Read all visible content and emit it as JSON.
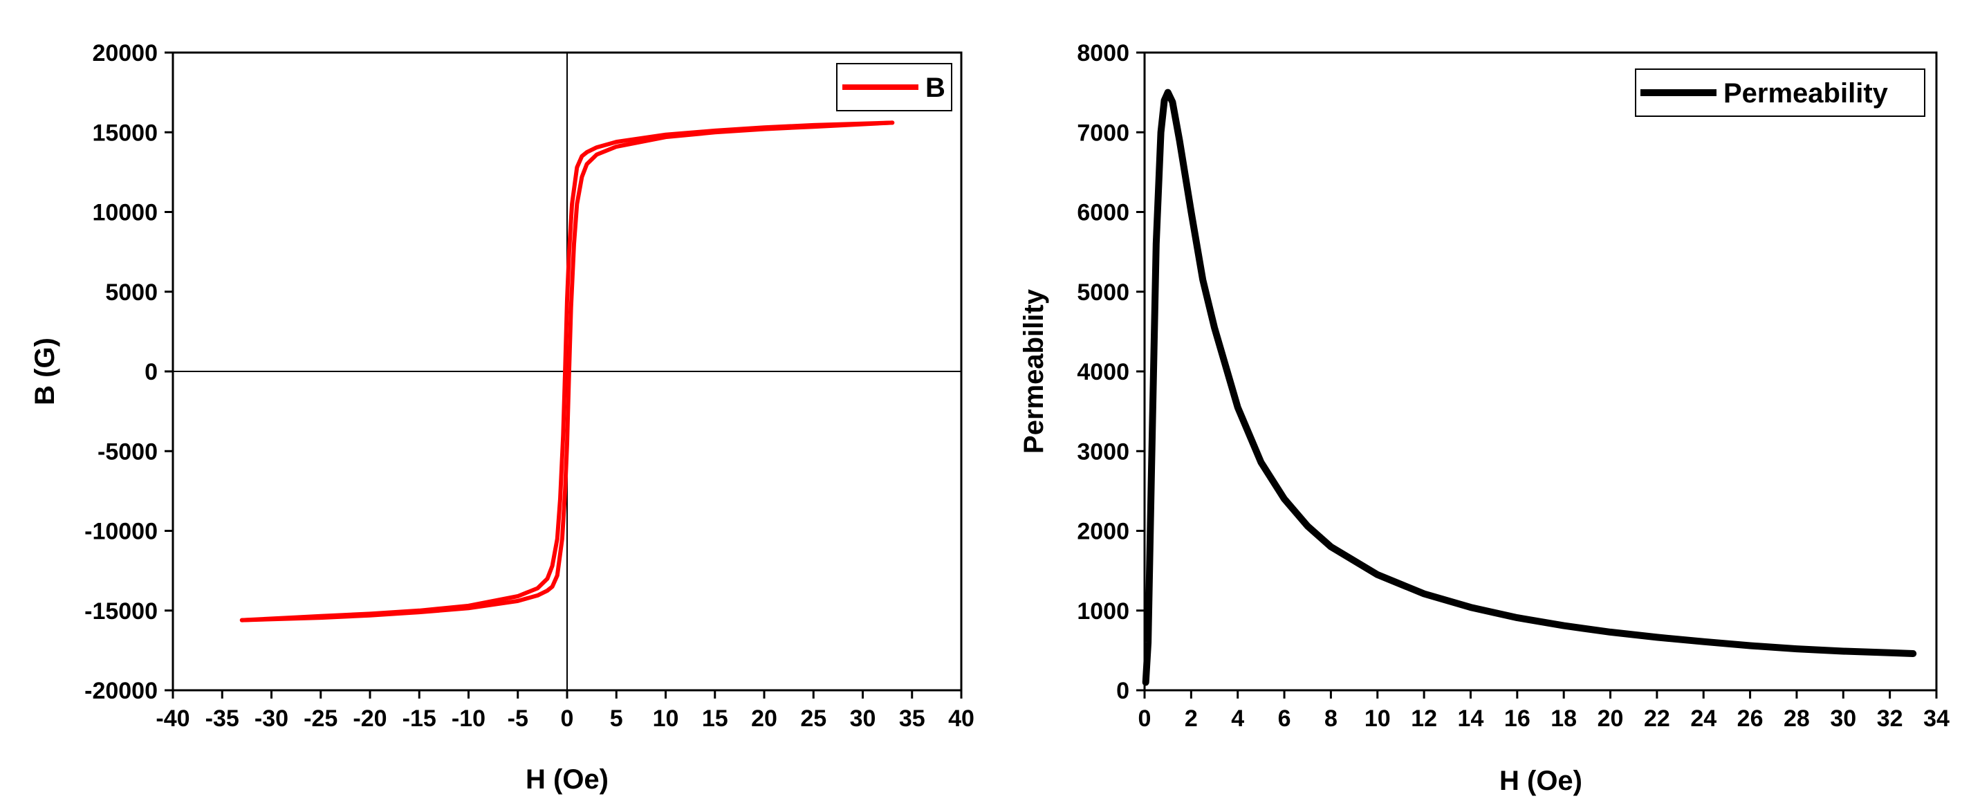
{
  "chart_data": [
    {
      "type": "line",
      "title": "",
      "xlabel": "H (Oe)",
      "ylabel": "B (G)",
      "xlim": [
        -40,
        40
      ],
      "ylim": [
        -20000,
        20000
      ],
      "xticks": [
        -40,
        -35,
        -30,
        -25,
        -20,
        -15,
        -10,
        -5,
        0,
        5,
        10,
        15,
        20,
        25,
        30,
        35,
        40
      ],
      "yticks": [
        -20000,
        -15000,
        -10000,
        -5000,
        0,
        5000,
        10000,
        15000,
        20000
      ],
      "legend": {
        "position": "top-right",
        "entries": [
          "B"
        ]
      },
      "zero_lines": true,
      "series": [
        {
          "name": "B",
          "color": "#ff0000",
          "branch_descending": {
            "x": [
              33,
              25,
              20,
              15,
              10,
              5,
              3,
              2,
              1.5,
              1,
              0.5,
              0.2,
              0,
              -0.2,
              -0.4,
              -0.7,
              -1.0,
              -1.5,
              -2,
              -3,
              -5,
              -10,
              -15,
              -20,
              -25,
              -33
            ],
            "y": [
              15600,
              15450,
              15300,
              15100,
              14850,
              14400,
              14050,
              13750,
              13500,
              12800,
              10500,
              7500,
              4500,
              0,
              -4000,
              -8000,
              -10500,
              -12200,
              -13000,
              -13600,
              -14100,
              -14700,
              -15000,
              -15200,
              -15350,
              -15600
            ]
          },
          "branch_ascending": {
            "x": [
              -33,
              -25,
              -20,
              -15,
              -10,
              -5,
              -3,
              -2,
              -1.5,
              -1,
              -0.5,
              -0.2,
              0,
              0.2,
              0.4,
              0.7,
              1.0,
              1.5,
              2,
              3,
              5,
              10,
              15,
              20,
              25,
              33
            ],
            "y": [
              -15600,
              -15450,
              -15300,
              -15100,
              -14850,
              -14400,
              -14050,
              -13750,
              -13500,
              -12800,
              -10500,
              -7500,
              -4500,
              0,
              4000,
              8000,
              10500,
              12200,
              13000,
              13600,
              14100,
              14700,
              15000,
              15200,
              15350,
              15600
            ]
          }
        }
      ]
    },
    {
      "type": "line",
      "title": "",
      "xlabel": "H (Oe)",
      "ylabel": "Permeability",
      "xlim": [
        0,
        34
      ],
      "ylim": [
        0,
        8000
      ],
      "xticks": [
        0,
        2,
        4,
        6,
        8,
        10,
        12,
        14,
        16,
        18,
        20,
        22,
        24,
        26,
        28,
        30,
        32,
        34
      ],
      "yticks": [
        0,
        1000,
        2000,
        3000,
        4000,
        5000,
        6000,
        7000,
        8000
      ],
      "legend": {
        "position": "top-right",
        "entries": [
          "Permeability"
        ]
      },
      "series": [
        {
          "name": "Permeability",
          "color": "#000000",
          "x": [
            0.05,
            0.15,
            0.3,
            0.5,
            0.7,
            0.85,
            1.0,
            1.2,
            1.5,
            2,
            2.5,
            3,
            4,
            5,
            6,
            7,
            8,
            10,
            12,
            14,
            16,
            18,
            20,
            22,
            24,
            26,
            28,
            30,
            32,
            33
          ],
          "y": [
            100,
            600,
            2800,
            5600,
            7000,
            7400,
            7500,
            7380,
            6900,
            6000,
            5150,
            4550,
            3550,
            2860,
            2400,
            2060,
            1800,
            1450,
            1210,
            1040,
            910,
            810,
            730,
            665,
            610,
            560,
            520,
            490,
            470,
            460
          ]
        }
      ]
    }
  ]
}
